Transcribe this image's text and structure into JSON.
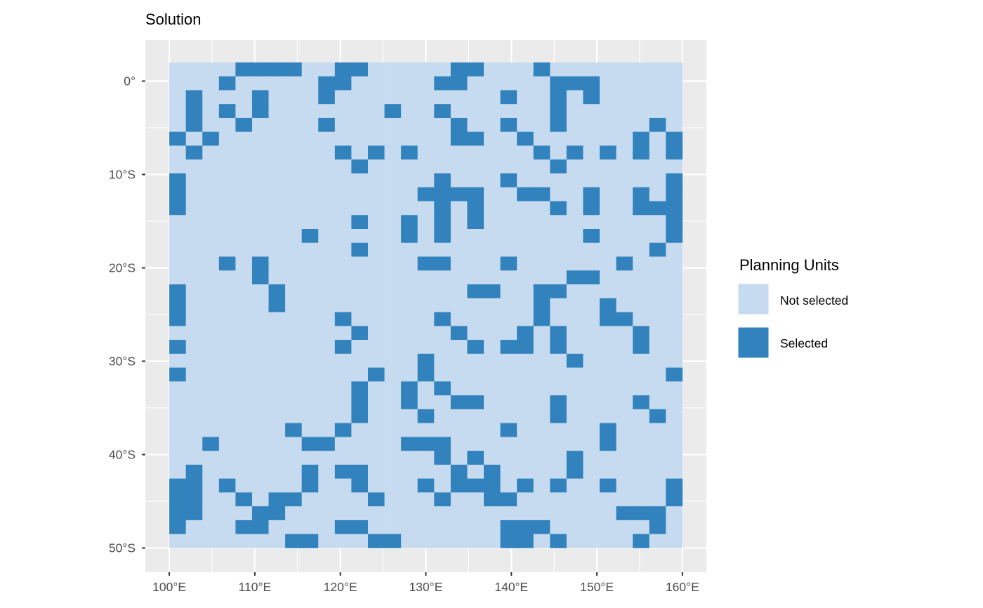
{
  "chart_data": {
    "type": "heatmap",
    "title": "Solution",
    "xlabel": "",
    "ylabel": "",
    "x_ticks": [
      {
        "value": 100,
        "label": "100°E"
      },
      {
        "value": 110,
        "label": "110°E"
      },
      {
        "value": 120,
        "label": "120°E"
      },
      {
        "value": 130,
        "label": "130°E"
      },
      {
        "value": 140,
        "label": "140°E"
      },
      {
        "value": 150,
        "label": "150°E"
      },
      {
        "value": 160,
        "label": "160°E"
      }
    ],
    "y_ticks": [
      {
        "value": 0,
        "label": "0°"
      },
      {
        "value": -10,
        "label": "10°S"
      },
      {
        "value": -20,
        "label": "20°S"
      },
      {
        "value": -30,
        "label": "30°S"
      },
      {
        "value": -40,
        "label": "40°S"
      },
      {
        "value": -50,
        "label": "50°S"
      }
    ],
    "xlim": [
      97.2,
      162.8
    ],
    "ylim": [
      -52.6,
      4.4
    ],
    "x_extent": [
      100,
      160
    ],
    "y_extent": [
      -50,
      2
    ],
    "grid": true,
    "legend": {
      "title": "Planning Units",
      "placement": "right",
      "items": [
        {
          "label": "Not selected",
          "color": "#c6dbef"
        },
        {
          "label": "Selected",
          "color": "#3182bd"
        }
      ]
    },
    "colors": {
      "not_selected": "#c6dbef",
      "selected": "#3182bd",
      "panel_background": "#ebebeb",
      "grid": "#ffffff"
    },
    "grid_cells": [
      "....####..##.....##...#........",
      "...#.....##.....##.....###.....",
      ".#...#...#..........#..#.#.....",
      ".#.#.#.......#..#......#.......",
      ".#..#....#.......#..#..#.....#.",
      "#.#..............##..#......#.#",
      ".#........#.#.#.......#.#.#.#.#",
      "...........#...........#.......",
      "#...............#...#.........#",
      "#..............####..##..#..#.#",
      "#...............#.#....#.#..###",
      "...........#..#.#.#...........#",
      "........#.....#.#........#....#",
      "...........#.................#.",
      "...#.#.........##...#......#...",
      ".....#..................##.....",
      "#.....#...........##..##.......",
      "#.....#...............#...#....",
      "#.........#.....#.....#...##...",
      "...........#.....#...#.#....#..",
      "#.........#.......#.##.#....#..",
      "...............#........#......",
      "#...........#..#..............#",
      "...........#..#.#..............",
      "...........#..#..##....#....#..",
      "...........#...#.......#.....#.",
      ".......#..#.........#.....#....",
      "..#.....##....###.........#....",
      "................#.#.....#......",
      ".#......#.##.....#.#....#......",
      "##.#....#..#...#.###.#.#..#...#",
      "##..#.##....#...#..##.........#",
      "##...##....................###.",
      "#...##....##........###......#.",
      ".......##...##......##.#....#.."
    ]
  }
}
